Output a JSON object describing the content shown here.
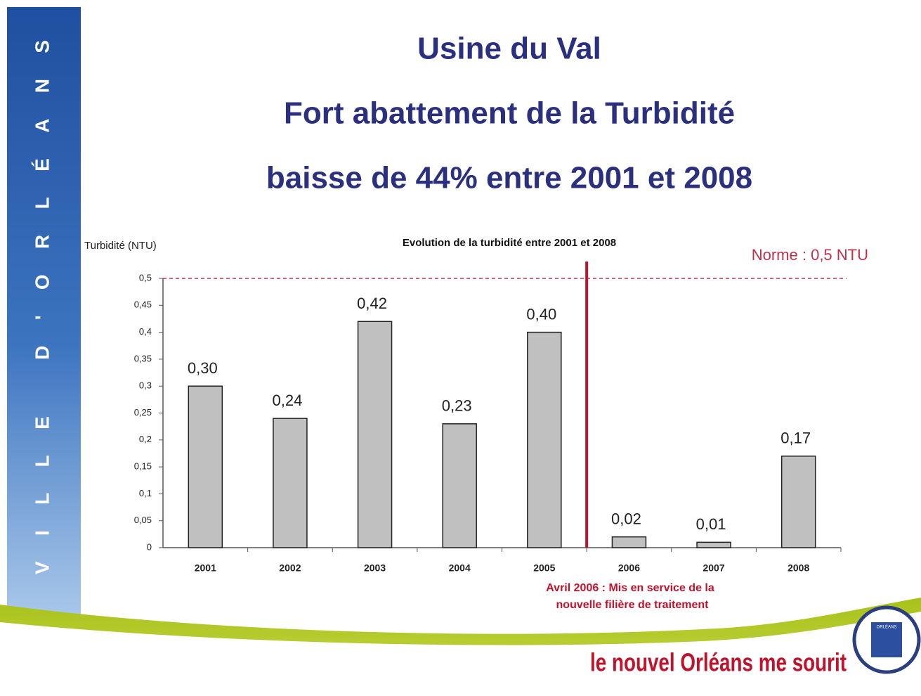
{
  "slide": {
    "title_lines": [
      "Usine du Val",
      "Fort abattement de la Turbidité",
      "baisse de 44% entre 2001 et 2008"
    ],
    "sidebar": "VILLE D'ORLÉANS",
    "slogan": "le nouvel Orléans me sourit",
    "logo": "ORLÉANS"
  },
  "chart_data": {
    "type": "bar",
    "title": "Evolution de la turbidité entre 2001 et 2008",
    "y_label": "Turbidité (NTU)",
    "categories": [
      "2001",
      "2002",
      "2003",
      "2004",
      "2005",
      "2006",
      "2007",
      "2008"
    ],
    "values": [
      0.3,
      0.24,
      0.42,
      0.23,
      0.4,
      0.02,
      0.01,
      0.17
    ],
    "value_labels": [
      "0,30",
      "0,24",
      "0,42",
      "0,23",
      "0,40",
      "0,02",
      "0,01",
      "0,17"
    ],
    "color": "#c0c0c0",
    "ylim": [
      0,
      0.5
    ],
    "yticks": [
      0,
      {
        "value": 0.05,
        "label": "0,05"
      },
      {
        "value": 0.1,
        "label": "0,1"
      },
      {
        "value": 0.15,
        "label": "0,15"
      },
      {
        "value": 0.2,
        "label": "0,2"
      },
      {
        "value": 0.25,
        "label": "0,25"
      },
      {
        "value": 0.3,
        "label": "0,3"
      },
      {
        "value": 0.35,
        "label": "0,35"
      },
      {
        "value": 0.4,
        "label": "0,4"
      },
      {
        "value": 0.45,
        "label": "0,45"
      },
      {
        "value": 0.5,
        "label": "0,5"
      }
    ],
    "norm": {
      "value": 0.5,
      "label": "Norme : 0,5 NTU"
    },
    "annotation_lines": [
      "Avril 2006 : Mis en service de la",
      "nouvelle filière de traitement"
    ],
    "grid": false
  }
}
